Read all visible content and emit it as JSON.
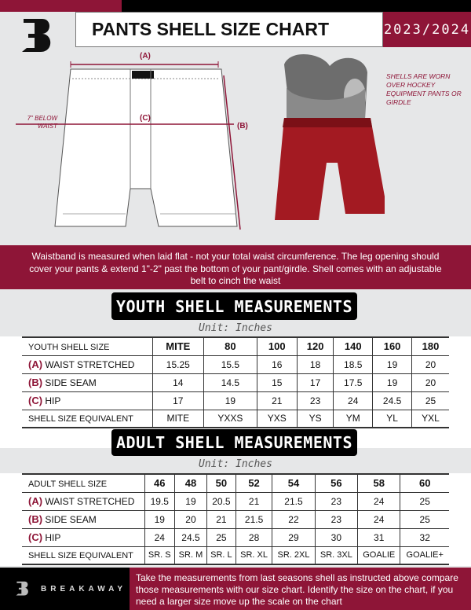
{
  "header": {
    "title": "PANTS SHELL SIZE CHART",
    "season": "2023/2024",
    "brand_logo": "B"
  },
  "diagram": {
    "label_a": "(A)",
    "label_b": "(B)",
    "label_c": "(C)",
    "below_waist": "7\" BELOW WAIST"
  },
  "photo_note": "SHELLS ARE WORN OVER HOCKEY EQUIPMENT PANTS OR GIRDLE",
  "band_text": "Waistband is measured when laid flat - not your total waist circumference. The leg opening should cover your pants & extend 1\"-2\" past the bottom of your pant/girdle. Shell comes with an adjustable belt to cinch the waist",
  "youth": {
    "title": "YOUTH SHELL MEASUREMENTS",
    "unit": "Unit: Inches",
    "rows": [
      {
        "letter": "",
        "label": "YOUTH SHELL SIZE",
        "values": [
          "MITE",
          "80",
          "100",
          "120",
          "140",
          "160",
          "180"
        ]
      },
      {
        "letter": "(A)",
        "label": "WAIST STRETCHED",
        "values": [
          "15.25",
          "15.5",
          "16",
          "18",
          "18.5",
          "19",
          "20"
        ]
      },
      {
        "letter": "(B)",
        "label": "SIDE SEAM",
        "values": [
          "14",
          "14.5",
          "15",
          "17",
          "17.5",
          "19",
          "20"
        ]
      },
      {
        "letter": "(C)",
        "label": "HIP",
        "values": [
          "17",
          "19",
          "21",
          "23",
          "24",
          "24.5",
          "25"
        ]
      },
      {
        "letter": "",
        "label": "SHELL SIZE EQUIVALENT",
        "values": [
          "MITE",
          "YXXS",
          "YXS",
          "YS",
          "YM",
          "YL",
          "YXL"
        ]
      }
    ]
  },
  "adult": {
    "title": "ADULT SHELL MEASUREMENTS",
    "unit": "Unit: Inches",
    "rows": [
      {
        "letter": "",
        "label": "ADULT SHELL SIZE",
        "values": [
          "46",
          "48",
          "50",
          "52",
          "54",
          "56",
          "58",
          "60"
        ]
      },
      {
        "letter": "(A)",
        "label": "WAIST STRETCHED",
        "values": [
          "19.5",
          "19",
          "20.5",
          "21",
          "21.5",
          "23",
          "24",
          "25"
        ]
      },
      {
        "letter": "(B)",
        "label": "SIDE SEAM",
        "values": [
          "19",
          "20",
          "21",
          "21.5",
          "22",
          "23",
          "24",
          "25"
        ]
      },
      {
        "letter": "(C)",
        "label": "HIP",
        "values": [
          "24",
          "24.5",
          "25",
          "28",
          "29",
          "30",
          "31",
          "32"
        ]
      },
      {
        "letter": "",
        "label": "SHELL SIZE EQUIVALENT",
        "values": [
          "SR. S",
          "SR. M",
          "SR. L",
          "SR. XL",
          "SR. 2XL",
          "SR. 3XL",
          "GOALIE",
          "GOALIE+"
        ]
      }
    ]
  },
  "footer": {
    "brand": "BREAKAWAY",
    "text": "Take the measurements from last seasons shell as instructed above compare those measurements  with our size chart. Identify the size on the chart, if you need a larger size move up the scale on the chart"
  },
  "colors": {
    "accent": "#8e1537",
    "dark": "#000000",
    "background": "#e6e7e8"
  }
}
